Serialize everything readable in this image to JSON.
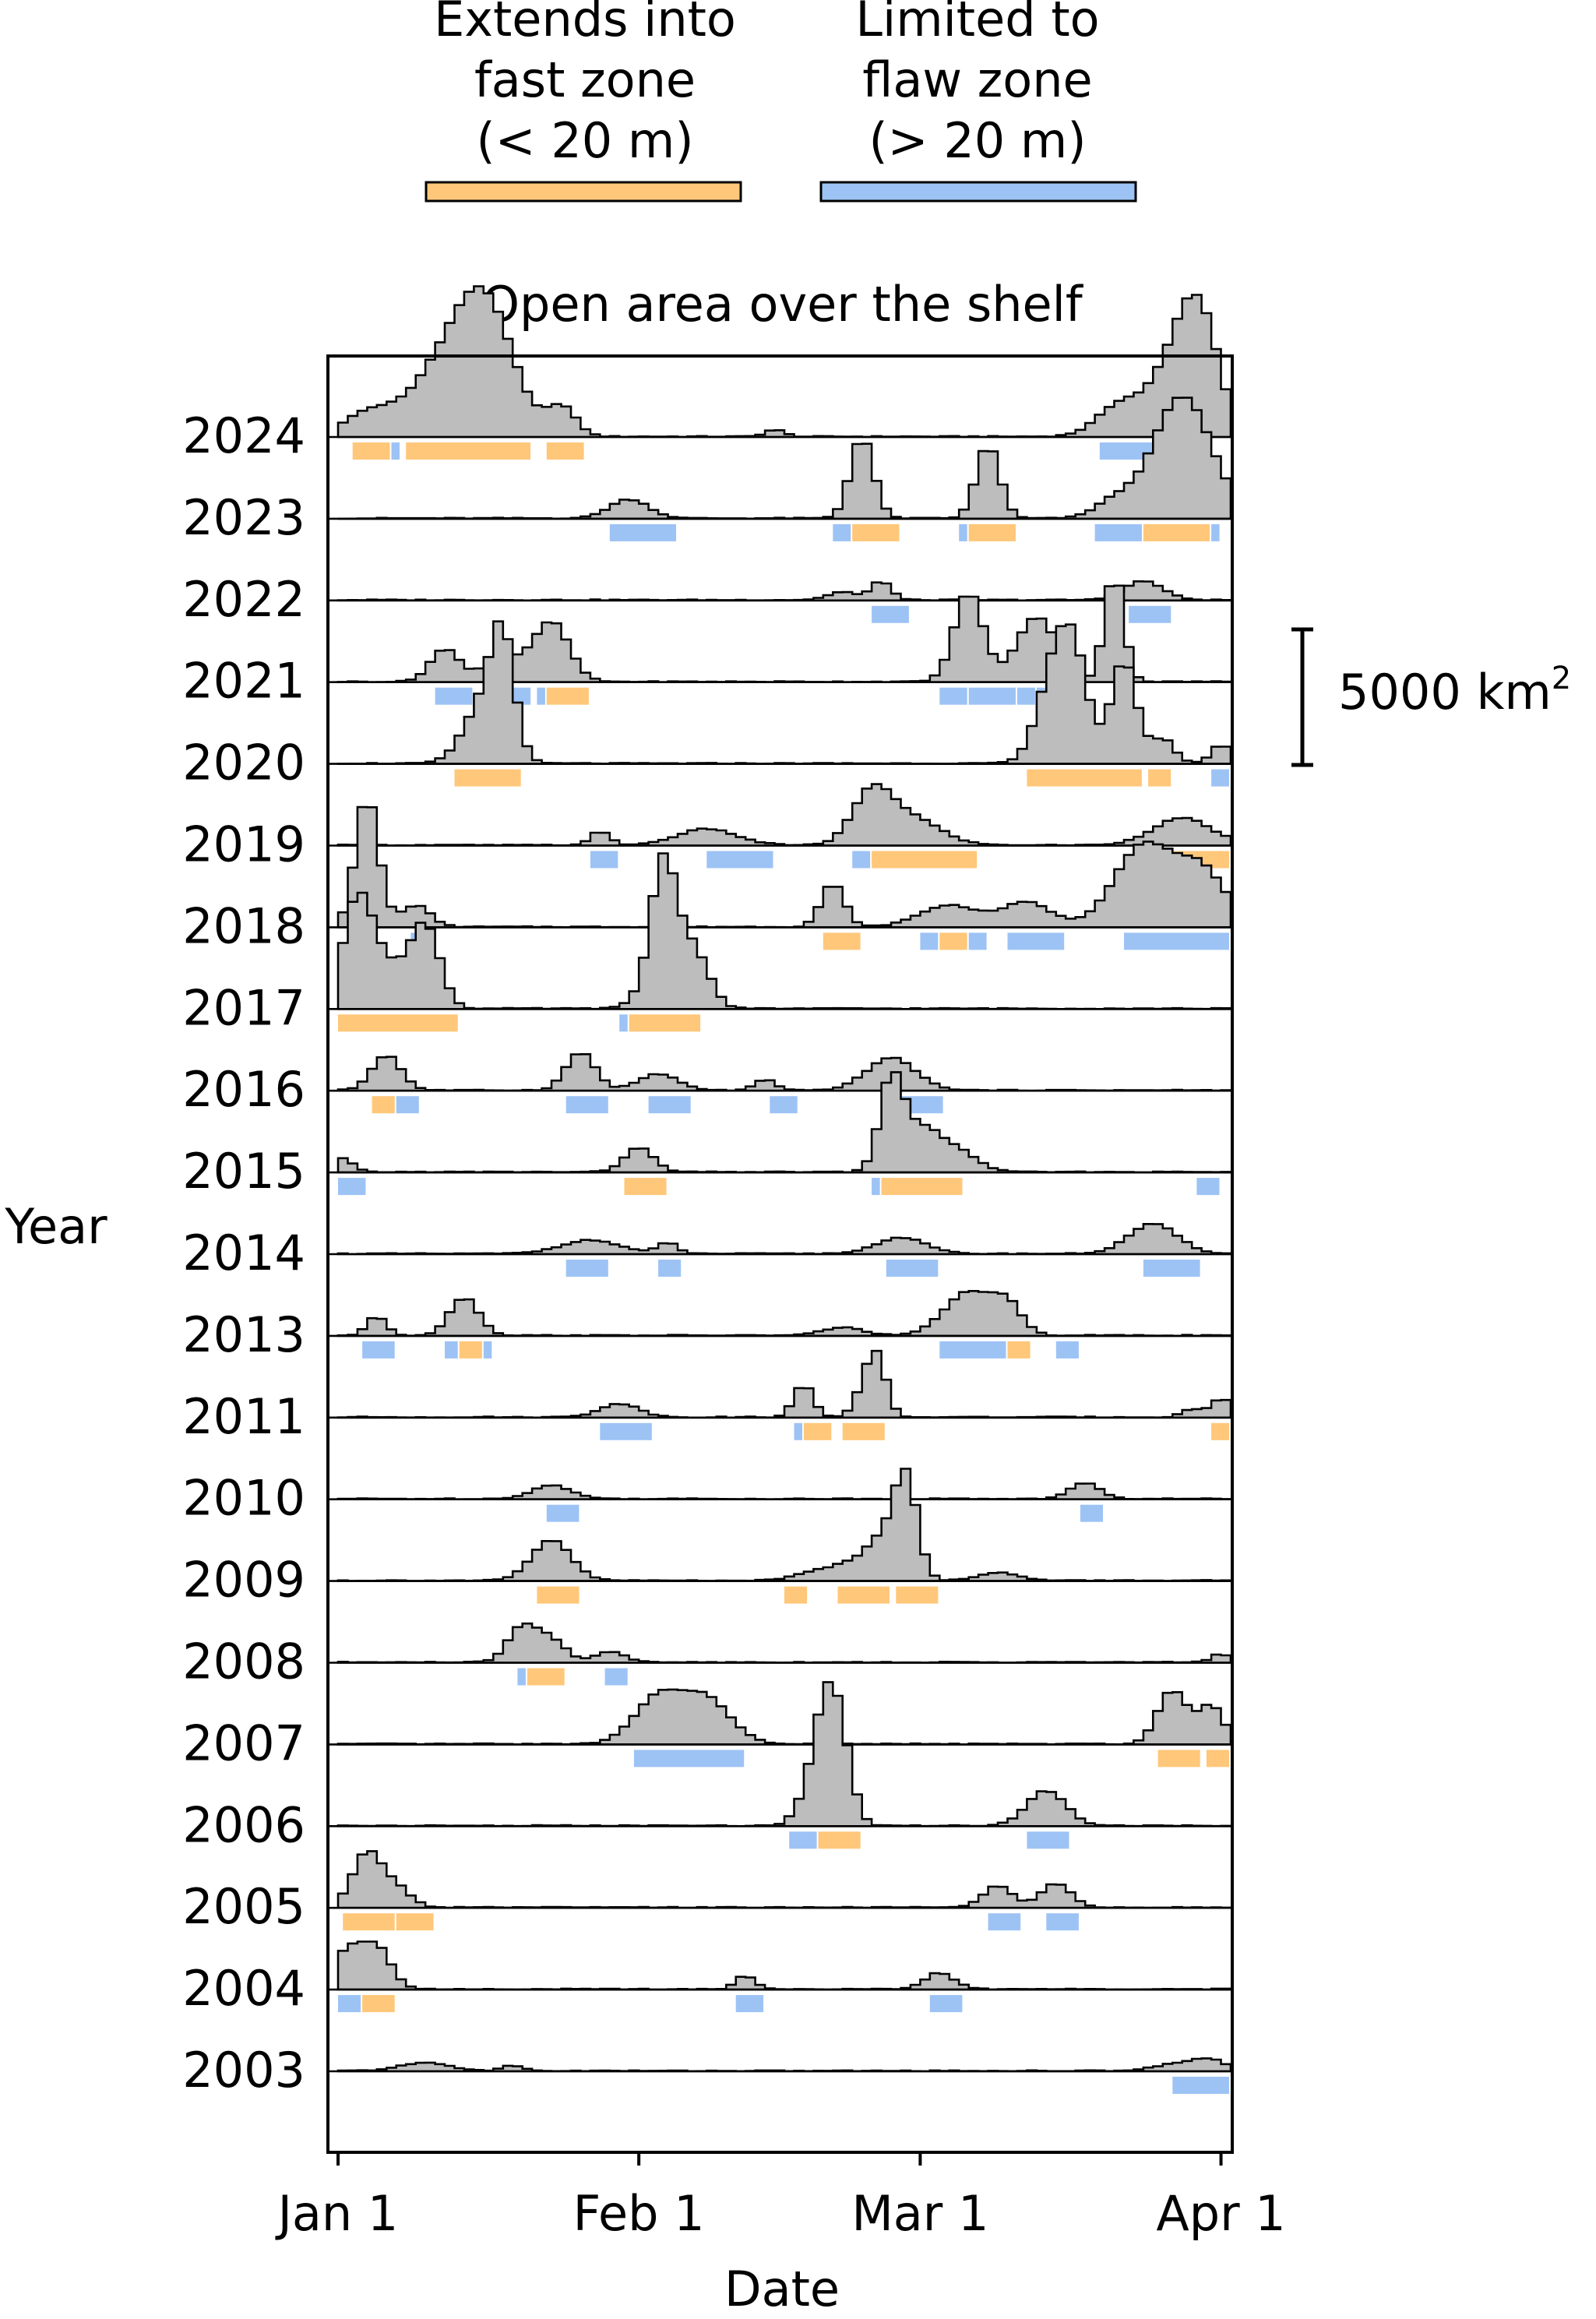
{
  "colors": {
    "fast": "#FFC77A",
    "fast_text": "#F5A623",
    "flaw": "#9DC3F5",
    "flaw_text": "#2F8BE6",
    "histogram_fill": "#BDBDBD",
    "line": "#000000"
  },
  "legend": {
    "fast_label_lines": [
      "Extends into",
      "fast zone",
      "(< 20 m)"
    ],
    "flaw_label_lines": [
      "Limited to",
      "flaw zone",
      "(> 20 m)"
    ]
  },
  "scale_bar": {
    "label": "5000 km",
    "superscript": "2",
    "value_km2": 5000
  },
  "chart_data": {
    "type": "area",
    "title": "Open area over the shelf",
    "xlabel": "Date",
    "ylabel": "Year",
    "x_ticks": [
      {
        "label": "Jan 1",
        "day": 1
      },
      {
        "label": "Feb 1",
        "day": 32
      },
      {
        "label": "Mar 1",
        "day": 61
      },
      {
        "label": "Apr 1",
        "day": 92
      }
    ],
    "xlim": [
      0,
      92
    ],
    "grid": false,
    "legend_position": "top",
    "units": "km2",
    "series": [
      {
        "year": "2024",
        "peaks": [
          [
            3,
            800,
            2.5
          ],
          [
            10,
            1600,
            3.5
          ],
          [
            13,
            2000,
            3
          ],
          [
            15,
            2200,
            2.5
          ],
          [
            17,
            1500,
            2.5
          ],
          [
            23,
            1100,
            1.5
          ],
          [
            45,
            250,
            1
          ],
          [
            81,
            1300,
            2.5
          ],
          [
            86,
            2500,
            2
          ],
          [
            88,
            2700,
            1.5
          ],
          [
            90,
            2500,
            1.5
          ]
        ],
        "events": [
          [
            "fast",
            1.5,
            5.5
          ],
          [
            "flaw",
            5.5,
            6.5
          ],
          [
            "fast",
            7,
            20
          ],
          [
            "fast",
            21.5,
            25.5
          ],
          [
            "flaw",
            78.5,
            84.5
          ]
        ]
      },
      {
        "year": "2023",
        "peaks": [
          [
            30,
            700,
            2
          ],
          [
            54,
            3000,
            1.2
          ],
          [
            67,
            2700,
            1.2
          ],
          [
            80,
            600,
            2
          ],
          [
            87,
            4500,
            3
          ]
        ],
        "events": [
          [
            "flaw",
            28,
            35
          ],
          [
            "flaw",
            51,
            53
          ],
          [
            "fast",
            53,
            58
          ],
          [
            "flaw",
            64,
            65
          ],
          [
            "fast",
            65,
            70
          ],
          [
            "flaw",
            78,
            83
          ],
          [
            "fast",
            83,
            90
          ],
          [
            "flaw",
            90,
            91
          ]
        ]
      },
      {
        "year": "2022",
        "peaks": [
          [
            52,
            300,
            1.5
          ],
          [
            56,
            700,
            1
          ],
          [
            83,
            700,
            2
          ]
        ],
        "events": [
          [
            "flaw",
            55,
            59
          ],
          [
            "flaw",
            81.5,
            86
          ]
        ]
      },
      {
        "year": "2021",
        "peaks": [
          [
            11,
            1200,
            1.5
          ],
          [
            17,
            900,
            2
          ],
          [
            22,
            2200,
            1.8
          ],
          [
            65,
            3300,
            1.5
          ],
          [
            72,
            2400,
            2
          ],
          [
            80,
            4000,
            1
          ]
        ],
        "events": [
          [
            "flaw",
            10,
            14
          ],
          [
            "flaw",
            17,
            20
          ],
          [
            "flaw",
            20.5,
            21.5
          ],
          [
            "fast",
            21.5,
            26
          ],
          [
            "flaw",
            62,
            65
          ],
          [
            "flaw",
            65,
            70
          ],
          [
            "flaw",
            70,
            72
          ],
          [
            "flaw",
            72,
            76
          ],
          [
            "flaw",
            76,
            77
          ]
        ]
      },
      {
        "year": "2020",
        "peaks": [
          [
            15,
            2200,
            2
          ],
          [
            17,
            3900,
            1.2
          ],
          [
            74,
            3500,
            1.8
          ],
          [
            76,
            2800,
            1.5
          ],
          [
            81,
            3800,
            1.3
          ],
          [
            85,
            900,
            1.2
          ],
          [
            91,
            700,
            1
          ]
        ],
        "events": [
          [
            "fast",
            12,
            19
          ],
          [
            "fast",
            71,
            83
          ],
          [
            "fast",
            83.5,
            86
          ],
          [
            "flaw",
            90,
            92
          ]
        ]
      },
      {
        "year": "2019",
        "peaks": [
          [
            27,
            500,
            1
          ],
          [
            38,
            600,
            3
          ],
          [
            55,
            1800,
            2
          ],
          [
            59,
            1000,
            3
          ],
          [
            87,
            1000,
            3
          ]
        ],
        "events": [
          [
            "flaw",
            26,
            29
          ],
          [
            "flaw",
            38,
            45
          ],
          [
            "flaw",
            53,
            55
          ],
          [
            "fast",
            55,
            66
          ],
          [
            "fast",
            86,
            92
          ]
        ]
      },
      {
        "year": "2018",
        "peaks": [
          [
            3,
            4800,
            1.2
          ],
          [
            8,
            800,
            1.5
          ],
          [
            51,
            1600,
            1.2
          ],
          [
            63,
            800,
            3
          ],
          [
            71,
            900,
            2.5
          ],
          [
            83,
            3000,
            3
          ],
          [
            89,
            2000,
            2.5
          ]
        ],
        "events": [
          [
            "flaw",
            7.5,
            10
          ],
          [
            "fast",
            50,
            54
          ],
          [
            "flaw",
            60,
            62
          ],
          [
            "fast",
            62,
            65
          ],
          [
            "flaw",
            65,
            67
          ],
          [
            "flaw",
            69,
            75
          ],
          [
            "flaw",
            81,
            92
          ]
        ]
      },
      {
        "year": "2017",
        "peaks": [
          [
            2,
            3800,
            1.5
          ],
          [
            5,
            1500,
            2
          ],
          [
            9,
            3000,
            1.5
          ],
          [
            34,
            2200,
            2
          ],
          [
            33.5,
            3500,
            1.2
          ],
          [
            37,
            1500,
            1.5
          ]
        ],
        "events": [
          [
            "fast",
            0,
            12.5
          ],
          [
            "flaw",
            29,
            30
          ],
          [
            "fast",
            30,
            37.5
          ]
        ]
      },
      {
        "year": "2016",
        "peaks": [
          [
            5,
            1300,
            1.5
          ],
          [
            25,
            1400,
            1.5
          ],
          [
            33,
            600,
            2
          ],
          [
            44,
            400,
            1
          ],
          [
            57,
            1200,
            2.5
          ]
        ],
        "events": [
          [
            "fast",
            3.5,
            6
          ],
          [
            "flaw",
            6,
            8.5
          ],
          [
            "flaw",
            23.5,
            28
          ],
          [
            "flaw",
            32,
            36.5
          ],
          [
            "flaw",
            44.5,
            47.5
          ],
          [
            "flaw",
            56,
            62.5
          ]
        ]
      },
      {
        "year": "2015",
        "peaks": [
          [
            0.5,
            500,
            1
          ],
          [
            31,
            900,
            1.5
          ],
          [
            57,
            3200,
            1.2
          ],
          [
            60,
            1600,
            2
          ],
          [
            64,
            700,
            2
          ]
        ],
        "events": [
          [
            "flaw",
            0,
            3
          ],
          [
            "fast",
            29.5,
            34
          ],
          [
            "flaw",
            55,
            56
          ],
          [
            "fast",
            56,
            64.5
          ],
          [
            "flaw",
            88.5,
            91
          ]
        ]
      },
      {
        "year": "2014",
        "peaks": [
          [
            26,
            500,
            3
          ],
          [
            34,
            400,
            1
          ],
          [
            58,
            600,
            2.5
          ],
          [
            84,
            1100,
            2.5
          ]
        ],
        "events": [
          [
            "flaw",
            23.5,
            28
          ],
          [
            "flaw",
            33,
            35.5
          ],
          [
            "flaw",
            56.5,
            62
          ],
          [
            "flaw",
            83,
            89
          ]
        ]
      },
      {
        "year": "2013",
        "peaks": [
          [
            4,
            700,
            1
          ],
          [
            13,
            1400,
            1.5
          ],
          [
            52,
            300,
            2
          ],
          [
            65,
            1600,
            2.5
          ],
          [
            69,
            1000,
            1.5
          ]
        ],
        "events": [
          [
            "flaw",
            2.5,
            6
          ],
          [
            "flaw",
            11,
            12.5
          ],
          [
            "fast",
            12.5,
            15
          ],
          [
            "flaw",
            15,
            16
          ],
          [
            "flaw",
            62,
            69
          ],
          [
            "fast",
            69,
            71.5
          ],
          [
            "flaw",
            74,
            76.5
          ]
        ]
      },
      {
        "year": "2011",
        "peaks": [
          [
            29,
            500,
            2
          ],
          [
            48,
            1200,
            1
          ],
          [
            54,
            700,
            1
          ],
          [
            55.5,
            2200,
            1
          ],
          [
            88,
            300,
            1
          ],
          [
            91,
            700,
            1
          ]
        ],
        "events": [
          [
            "flaw",
            27,
            32.5
          ],
          [
            "flaw",
            47,
            48
          ],
          [
            "fast",
            48,
            51
          ],
          [
            "fast",
            52,
            56.5
          ],
          [
            "fast",
            90,
            92
          ]
        ]
      },
      {
        "year": "2010",
        "peaks": [
          [
            22,
            500,
            2
          ],
          [
            77,
            600,
            1.5
          ]
        ],
        "events": [
          [
            "flaw",
            21.5,
            25
          ],
          [
            "flaw",
            76.5,
            79
          ]
        ]
      },
      {
        "year": "2009",
        "peaks": [
          [
            22,
            1500,
            2
          ],
          [
            49,
            300,
            2
          ],
          [
            53,
            600,
            2
          ],
          [
            56,
            1300,
            1.5
          ],
          [
            58.5,
            3800,
            1.2
          ],
          [
            68,
            300,
            2
          ]
        ],
        "events": [
          [
            "fast",
            20.5,
            25
          ],
          [
            "fast",
            46,
            48.5
          ],
          [
            "fast",
            51.5,
            57
          ],
          [
            "fast",
            57.5,
            62
          ]
        ]
      },
      {
        "year": "2008",
        "peaks": [
          [
            19,
            1300,
            1.5
          ],
          [
            22,
            800,
            1.5
          ],
          [
            28,
            400,
            1.5
          ],
          [
            91,
            300,
            1
          ]
        ],
        "events": [
          [
            "flaw",
            18.5,
            19.5
          ],
          [
            "fast",
            19.5,
            23.5
          ],
          [
            "flaw",
            27.5,
            30
          ]
        ]
      },
      {
        "year": "2007",
        "peaks": [
          [
            33,
            1700,
            2.5
          ],
          [
            38,
            1600,
            2.5
          ],
          [
            86,
            2000,
            1.5
          ],
          [
            90,
            1400,
            1.3
          ]
        ],
        "events": [
          [
            "flaw",
            30.5,
            42
          ],
          [
            "fast",
            84.5,
            89
          ],
          [
            "fast",
            89.5,
            92
          ]
        ]
      },
      {
        "year": "2006",
        "peaks": [
          [
            49,
            1200,
            1.5
          ],
          [
            50.5,
            3700,
            1.3
          ],
          [
            52,
            1900,
            1.2
          ],
          [
            73,
            1300,
            2
          ]
        ],
        "events": [
          [
            "flaw",
            46.5,
            49.5
          ],
          [
            "fast",
            49.5,
            54
          ],
          [
            "flaw",
            71,
            75.5
          ]
        ]
      },
      {
        "year": "2005",
        "peaks": [
          [
            3,
            2000,
            1.5
          ],
          [
            6,
            700,
            1.5
          ],
          [
            68,
            800,
            1.5
          ],
          [
            74,
            900,
            1.5
          ]
        ],
        "events": [
          [
            "fast",
            0.5,
            6
          ],
          [
            "fast",
            6,
            10
          ],
          [
            "flaw",
            67,
            70.5
          ],
          [
            "flaw",
            73,
            76.5
          ]
        ]
      },
      {
        "year": "2004",
        "peaks": [
          [
            1,
            1400,
            1.5
          ],
          [
            4,
            1500,
            1.5
          ],
          [
            42,
            500,
            1
          ],
          [
            62,
            600,
            1.5
          ]
        ],
        "events": [
          [
            "flaw",
            0,
            2.5
          ],
          [
            "fast",
            2.5,
            6
          ],
          [
            "flaw",
            41,
            44
          ],
          [
            "flaw",
            61,
            64.5
          ]
        ]
      },
      {
        "year": "2003",
        "peaks": [
          [
            9,
            300,
            2.5
          ],
          [
            18,
            200,
            1
          ],
          [
            87,
            300,
            2.5
          ],
          [
            90,
            300,
            1.5
          ]
        ],
        "events": [
          [
            "flaw",
            86,
            92
          ]
        ]
      }
    ]
  }
}
